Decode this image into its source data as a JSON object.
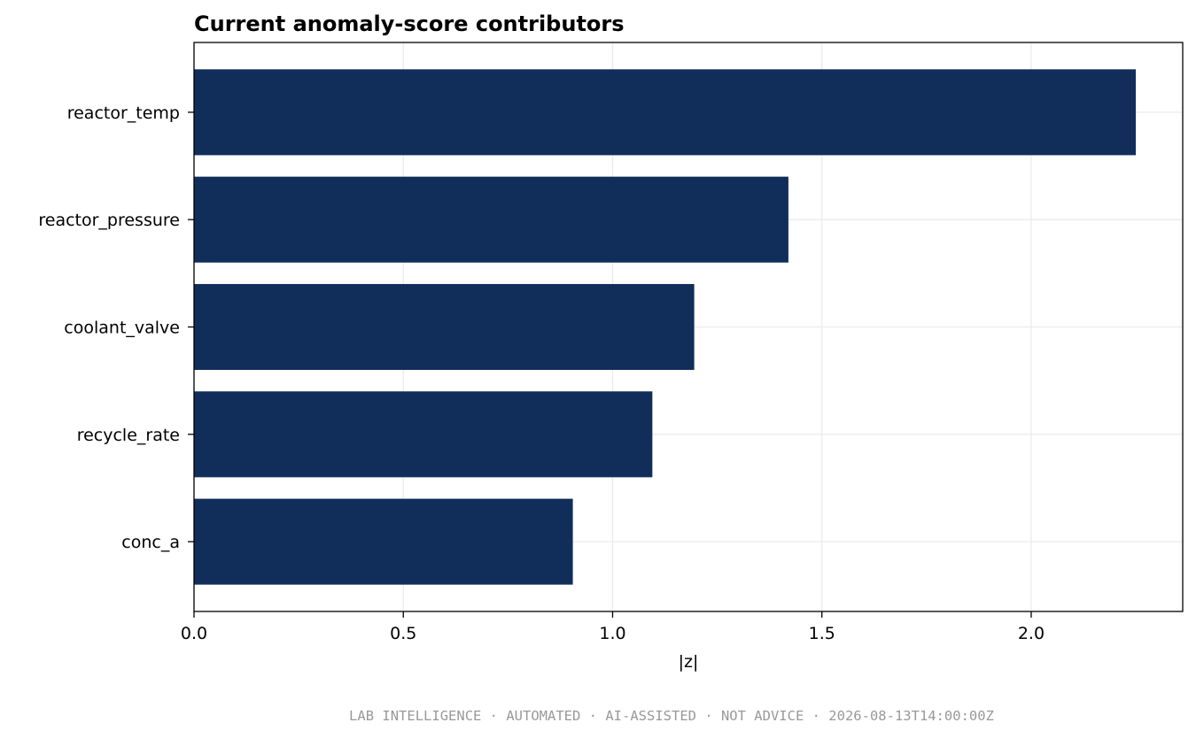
{
  "chart_data": {
    "type": "bar",
    "orientation": "horizontal",
    "title": "Current anomaly-score contributors",
    "xlabel": "|z|",
    "ylabel": "",
    "categories": [
      "reactor_temp",
      "reactor_pressure",
      "coolant_valve",
      "recycle_rate",
      "conc_a"
    ],
    "values": [
      2.25,
      1.42,
      1.195,
      1.095,
      0.905
    ],
    "xlim": [
      0,
      2.362
    ],
    "xticks": [
      0.0,
      0.5,
      1.0,
      1.5,
      2.0
    ],
    "xtick_labels": [
      "0.0",
      "0.5",
      "1.0",
      "1.5",
      "2.0"
    ],
    "grid": true,
    "bar_color": "#112e5b",
    "grid_color": "#ebebeb"
  },
  "footer": "LAB INTELLIGENCE · AUTOMATED · AI-ASSISTED · NOT ADVICE · 2026-08-13T14:00:00Z"
}
